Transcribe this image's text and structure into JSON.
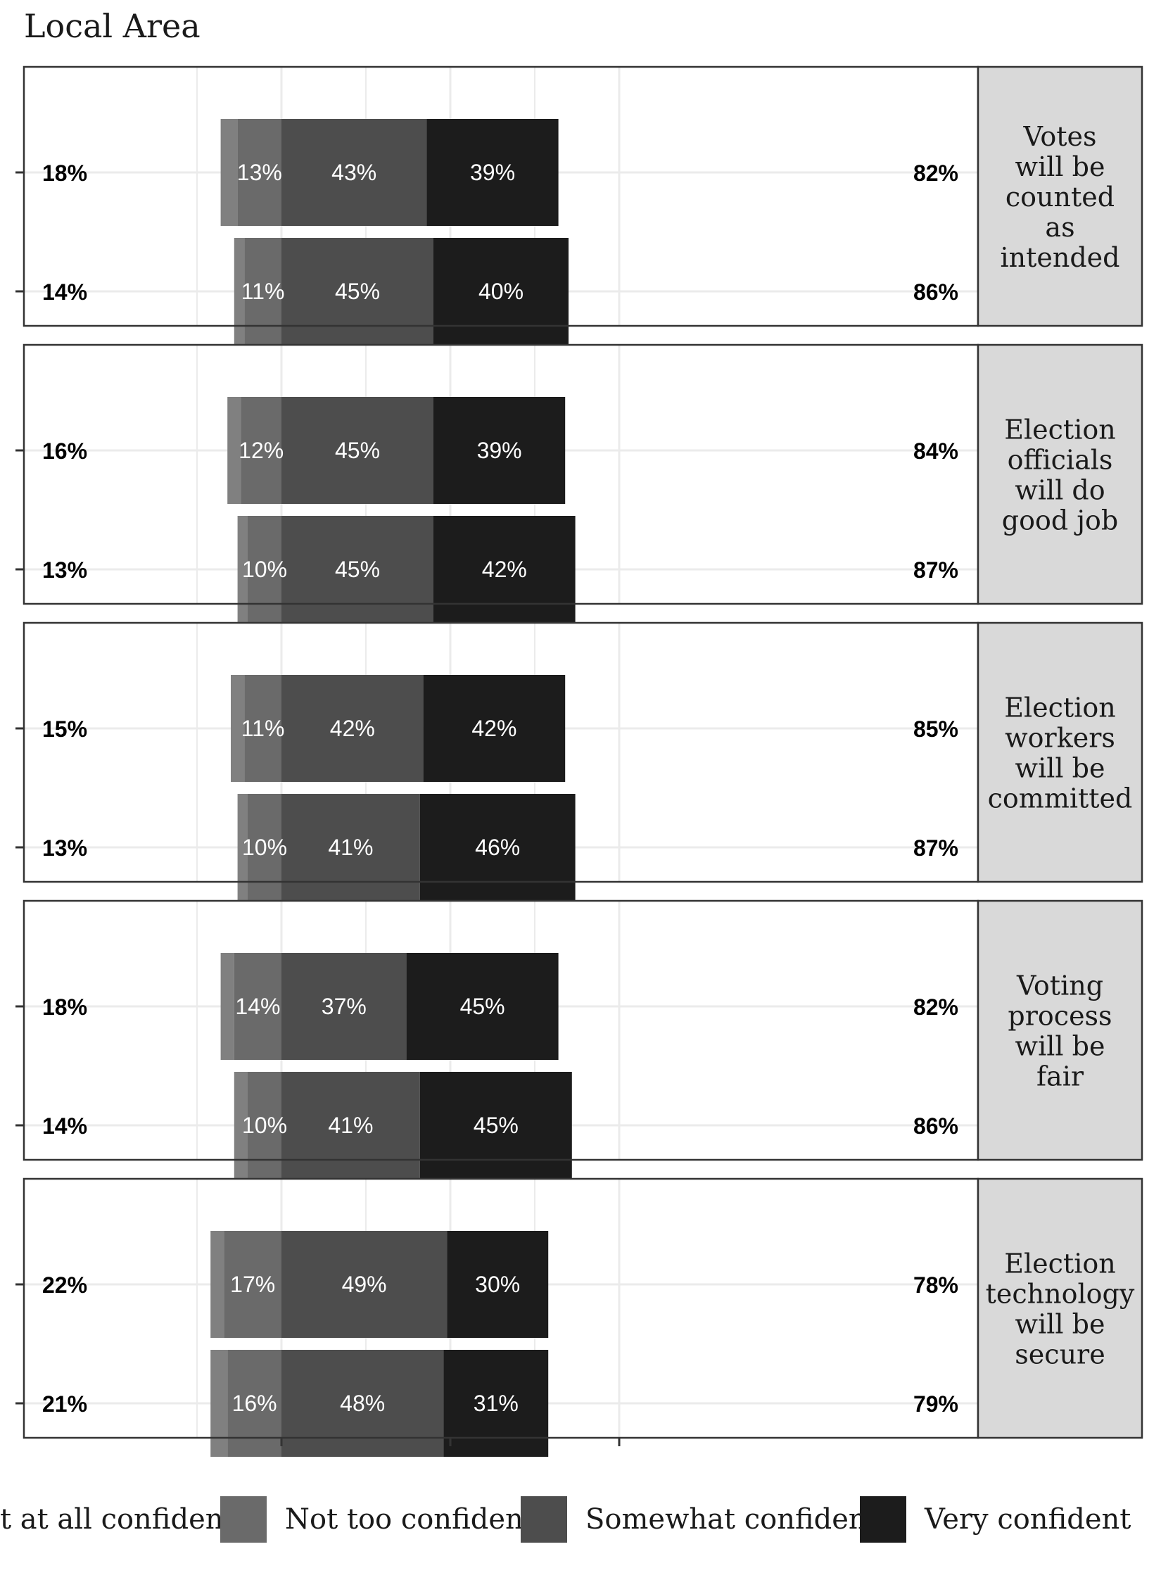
{
  "chart_data": {
    "type": "bar",
    "orientation": "horizontal-diverging-stacked",
    "title": "Local Area",
    "legend": {
      "placement": "bottom",
      "entries": [
        "Not at all confident",
        "Not too confident",
        "Somewhat confident",
        "Very confident"
      ],
      "visible_first_label": "t at all confident"
    },
    "colors": {
      "Not at all confident": "#808080",
      "Not too confident": "#6a6a6a",
      "Somewhat confident": "#4d4d4d",
      "Very confident": "#1c1c1c",
      "strip_fill": "#d9d9d9"
    },
    "xlim": [
      -50,
      100
    ],
    "grid": true,
    "facets": [
      {
        "label": "Votes will be counted as intended",
        "strip_lines": [
          "Votes",
          "will be",
          "counted",
          "as",
          "intended"
        ],
        "rows": [
          {
            "not_at_all": 5,
            "not_too": 13,
            "somewhat": 43,
            "very": 39,
            "left_total": "18%",
            "right_total": "82%",
            "labels": [
              "13%",
              "43%",
              "39%"
            ]
          },
          {
            "not_at_all": 3,
            "not_too": 11,
            "somewhat": 45,
            "very": 40,
            "left_total": "14%",
            "right_total": "86%",
            "labels": [
              "11%",
              "45%",
              "40%"
            ]
          }
        ]
      },
      {
        "label": "Election officials will do good job",
        "strip_lines": [
          "Election",
          "officials",
          "will do",
          "good job"
        ],
        "rows": [
          {
            "not_at_all": 4,
            "not_too": 12,
            "somewhat": 45,
            "very": 39,
            "left_total": "16%",
            "right_total": "84%",
            "labels": [
              "12%",
              "45%",
              "39%"
            ]
          },
          {
            "not_at_all": 3,
            "not_too": 10,
            "somewhat": 45,
            "very": 42,
            "left_total": "13%",
            "right_total": "87%",
            "labels": [
              "10%",
              "45%",
              "42%"
            ]
          }
        ]
      },
      {
        "label": "Election workers will be committed",
        "strip_lines": [
          "Election",
          "workers",
          "will be",
          "committed"
        ],
        "rows": [
          {
            "not_at_all": 4,
            "not_too": 11,
            "somewhat": 42,
            "very": 42,
            "left_total": "15%",
            "right_total": "85%",
            "labels": [
              "11%",
              "42%",
              "42%"
            ]
          },
          {
            "not_at_all": 3,
            "not_too": 10,
            "somewhat": 41,
            "very": 46,
            "left_total": "13%",
            "right_total": "87%",
            "labels": [
              "10%",
              "41%",
              "46%"
            ]
          }
        ]
      },
      {
        "label": "Voting process will be fair",
        "strip_lines": [
          "Voting",
          "process",
          "will be",
          "fair"
        ],
        "rows": [
          {
            "not_at_all": 4,
            "not_too": 14,
            "somewhat": 37,
            "very": 45,
            "left_total": "18%",
            "right_total": "82%",
            "labels": [
              "14%",
              "37%",
              "45%"
            ]
          },
          {
            "not_at_all": 4,
            "not_too": 10,
            "somewhat": 41,
            "very": 45,
            "left_total": "14%",
            "right_total": "86%",
            "labels": [
              "10%",
              "41%",
              "45%"
            ]
          }
        ]
      },
      {
        "label": "Election technology will be secure",
        "strip_lines": [
          "Election",
          "technology",
          "will be",
          "secure"
        ],
        "rows": [
          {
            "not_at_all": 4,
            "not_too": 17,
            "somewhat": 49,
            "very": 30,
            "left_total": "22%",
            "right_total": "78%",
            "labels": [
              "17%",
              "49%",
              "30%"
            ]
          },
          {
            "not_at_all": 5,
            "not_too": 16,
            "somewhat": 48,
            "very": 31,
            "left_total": "21%",
            "right_total": "79%",
            "labels": [
              "16%",
              "48%",
              "31%"
            ]
          }
        ]
      }
    ]
  }
}
